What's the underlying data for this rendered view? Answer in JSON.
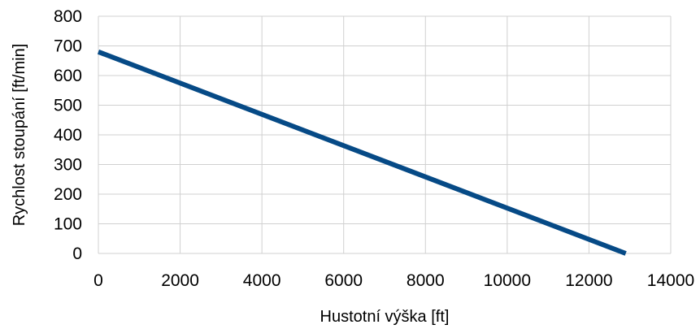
{
  "chart_data": {
    "type": "line",
    "xlabel": "Hustotní výška [ft]",
    "ylabel": "Rychlost stoupání [ft/min]",
    "xlim": [
      0,
      14000
    ],
    "ylim": [
      0,
      800
    ],
    "x_ticks": [
      0,
      2000,
      4000,
      6000,
      8000,
      10000,
      12000,
      14000
    ],
    "y_ticks": [
      0,
      100,
      200,
      300,
      400,
      500,
      600,
      700,
      800
    ],
    "grid": true,
    "series": [
      {
        "color": "#064a86",
        "x": [
          0,
          12900
        ],
        "y": [
          680,
          0
        ]
      }
    ]
  }
}
